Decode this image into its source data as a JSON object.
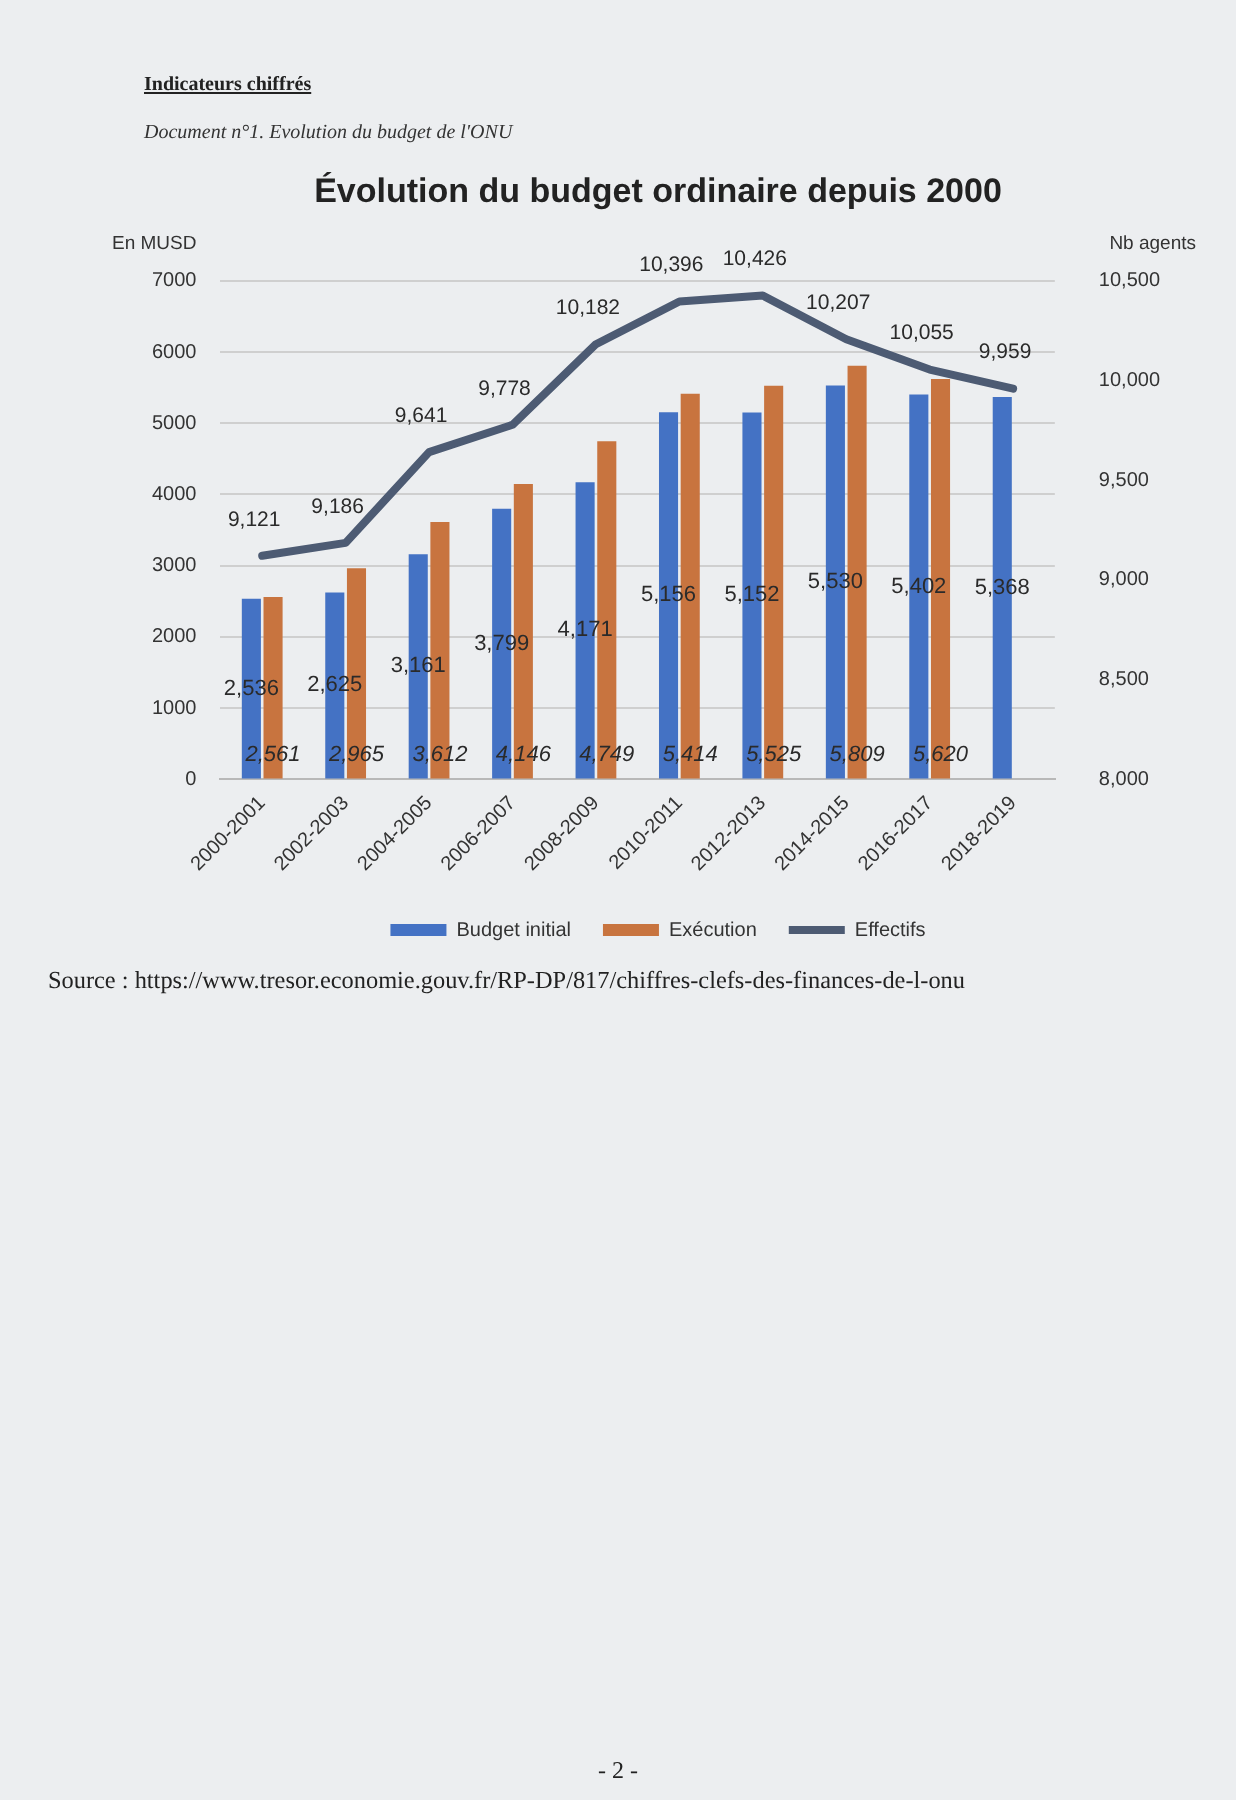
{
  "chart_data": {
    "type": "bar",
    "title": "Évolution du budget ordinaire depuis 2000",
    "subtitle": "Document n°1. Evolution du budget de l'ONU",
    "ylabel": "En MUSD",
    "y2label": "Nb agents",
    "categories": [
      "2000-2001",
      "2002-2003",
      "2004-2005",
      "2006-2007",
      "2008-2009",
      "2010-2011",
      "2012-2013",
      "2014-2015",
      "2016-2017",
      "2018-2019"
    ],
    "series": [
      {
        "name": "Budget initial",
        "color": "#4472c4",
        "values": [
          2536,
          2625,
          3161,
          3799,
          4171,
          5156,
          5152,
          5530,
          5402,
          5368
        ],
        "value_labels": [
          "2,536",
          "2,625",
          "3,161",
          "3,799",
          "4,171",
          "5,156",
          "5,152",
          "5,530",
          "5,402",
          "5,368"
        ]
      },
      {
        "name": "Exécution",
        "color": "#c8743f",
        "values": [
          2561,
          2965,
          3612,
          4146,
          4749,
          5414,
          5525,
          5809,
          5620,
          null
        ],
        "value_labels": [
          "2,561",
          "2,965",
          "3,612",
          "4,146",
          "4,749",
          "5,414",
          "5,525",
          "5,809",
          "5,620",
          null
        ]
      },
      {
        "name": "Effectifs",
        "type": "line",
        "axis": "y2",
        "color": "#4d5b73",
        "values": [
          9121,
          9186,
          9641,
          9778,
          10182,
          10396,
          10426,
          10207,
          10055,
          9959
        ],
        "value_labels": [
          "9,121",
          "9,186",
          "9,641",
          "9,778",
          "10,182",
          "10,396",
          "10,426",
          "10,207",
          "10,055",
          "9,959"
        ]
      }
    ],
    "ylim": [
      0,
      7000
    ],
    "yticks": [
      0,
      1000,
      2000,
      3000,
      4000,
      5000,
      6000,
      7000
    ],
    "y2lim": [
      8000,
      10500
    ],
    "y2ticks": [
      {
        "value": 8000,
        "label": "8,000"
      },
      {
        "value": 8500,
        "label": "8,500"
      },
      {
        "value": 9000,
        "label": "9,000"
      },
      {
        "value": 9500,
        "label": "9,500"
      },
      {
        "value": 10000,
        "label": "10,000"
      },
      {
        "value": 10500,
        "label": "10,500"
      }
    ],
    "grid": "y",
    "legend": "bottom",
    "annotations": [
      "Indicateurs chiffrés",
      "Source : https://www.tresor.economie.gouv.fr/RP-DP/817/chiffres-clefs-des-finances-de-l-onu",
      "- 2 -"
    ]
  }
}
